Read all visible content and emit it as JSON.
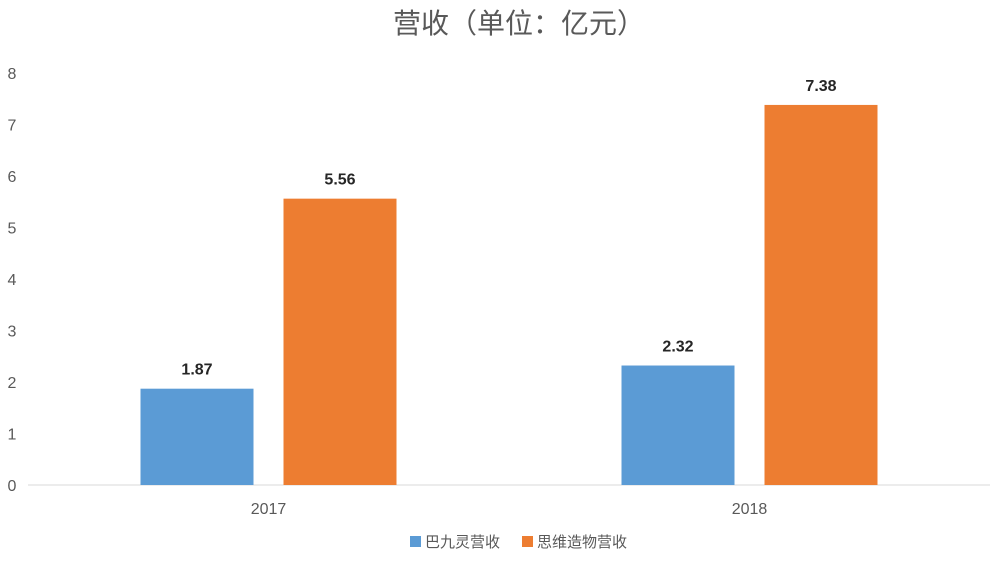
{
  "chart_data": {
    "type": "bar",
    "title": "营收（单位：亿元）",
    "categories": [
      "2017",
      "2018"
    ],
    "series": [
      {
        "name": "巴九灵营收",
        "values": [
          1.87,
          2.32
        ],
        "color": "#5B9BD5"
      },
      {
        "name": "思维造物营收",
        "values": [
          5.56,
          7.38
        ],
        "color": "#ED7D31"
      }
    ],
    "ylim": [
      0,
      8
    ],
    "yticks": [
      0,
      1,
      2,
      3,
      4,
      5,
      6,
      7,
      8
    ],
    "grid": false,
    "legend": "bottom",
    "xlabel": "",
    "ylabel": ""
  }
}
